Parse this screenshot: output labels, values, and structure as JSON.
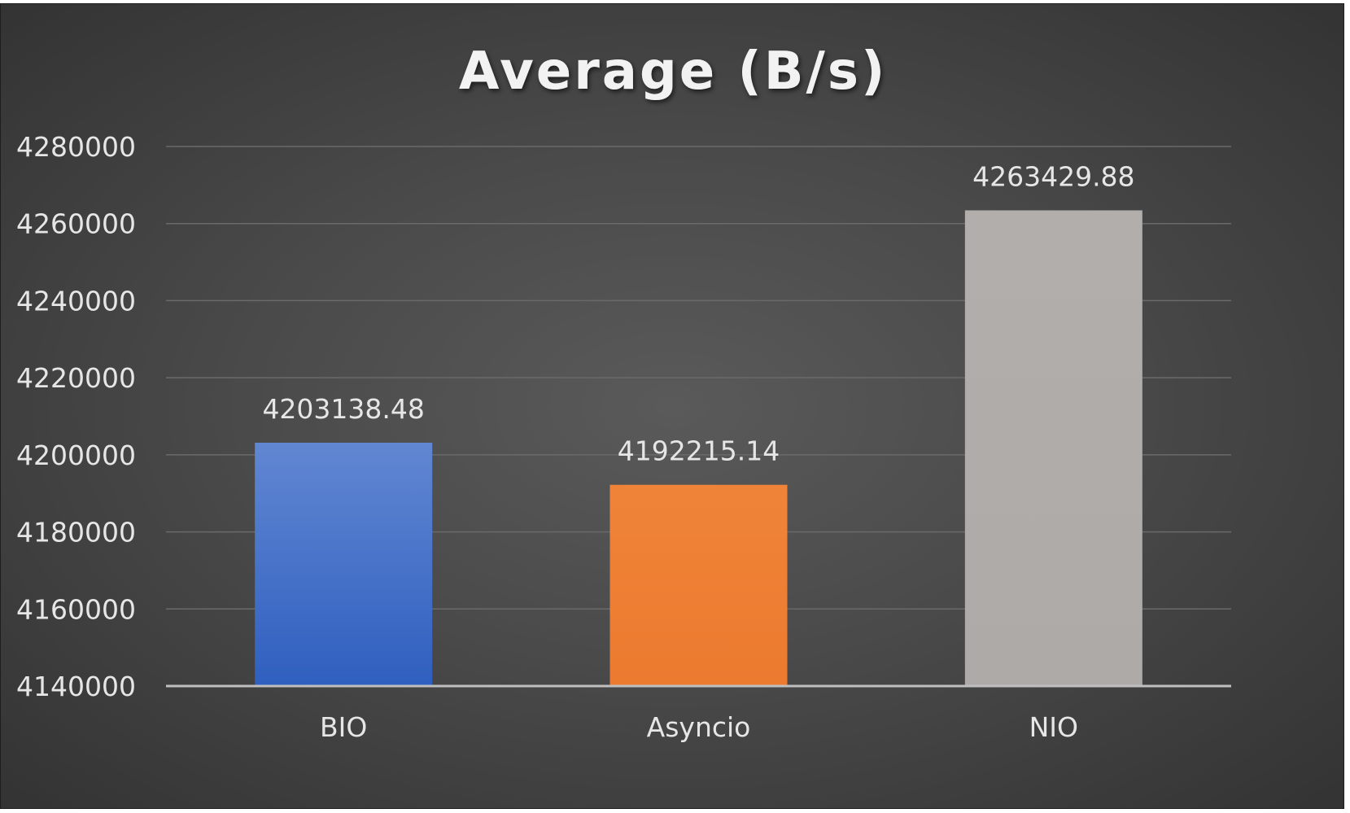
{
  "chart_data": {
    "type": "bar",
    "title": "Average (B/s)",
    "xlabel": "",
    "ylabel": "",
    "categories": [
      "BIO",
      "Asyncio",
      "NIO"
    ],
    "values": [
      4203138.48,
      4192215.14,
      4263429.88
    ],
    "value_labels": [
      "4203138.48",
      "4192215.14",
      "4263429.88"
    ],
    "ylim": [
      4140000,
      4280000
    ],
    "yticks": [
      4140000,
      4160000,
      4180000,
      4200000,
      4220000,
      4240000,
      4260000,
      4280000
    ],
    "ytick_labels": [
      "4140000",
      "4160000",
      "4180000",
      "4200000",
      "4220000",
      "4240000",
      "4260000",
      "4280000"
    ],
    "grid": true,
    "legend": "none",
    "bar_colors": [
      "#4472c4",
      "#ed7d31",
      "#a5a5a5"
    ],
    "background_color": "#404040"
  }
}
